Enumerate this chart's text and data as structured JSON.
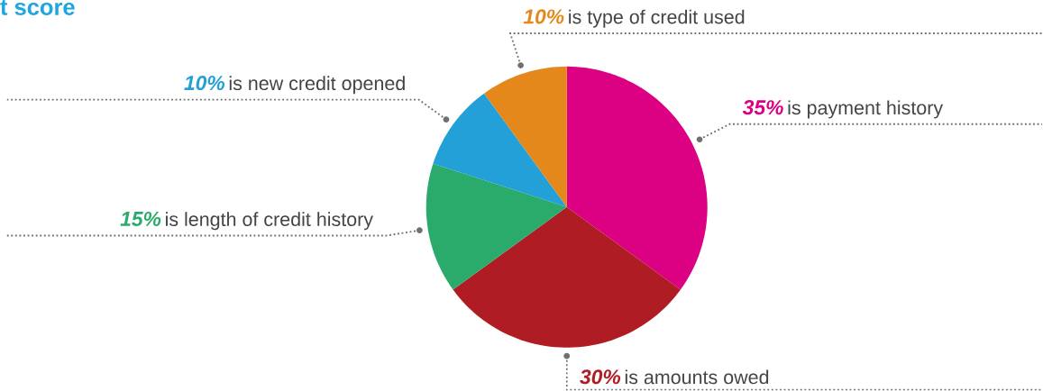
{
  "chart_data": {
    "type": "pie",
    "title": "t score",
    "categories": [
      "is payment history",
      "is amounts owed",
      "is length of credit history",
      "is new credit opened",
      "is type of credit used"
    ],
    "values": [
      35,
      30,
      15,
      10,
      10
    ],
    "value_labels": [
      "35%",
      "30%",
      "15%",
      "10%",
      "10%"
    ],
    "colors": [
      "#dc0082",
      "#b01c24",
      "#2aab6b",
      "#23a0d8",
      "#e5881b"
    ]
  }
}
